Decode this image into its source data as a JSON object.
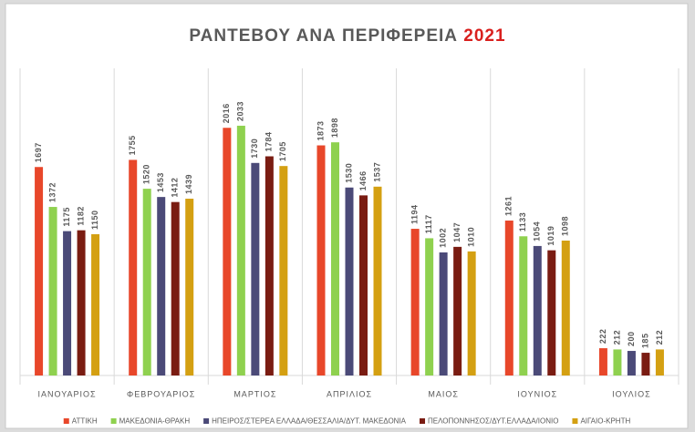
{
  "chart_data": {
    "type": "bar",
    "title": "ΡΑΝΤΕΒΟΥ ΑΝΑ ΠΕΡΙΦΕΡΕΙΑ",
    "title_highlight": "2021",
    "categories": [
      "ΙΑΝΟΥΑΡΙΟΣ",
      "ΦΕΒΡΟΥΑΡΙΟΣ",
      "ΜΑΡΤΙΟΣ",
      "ΑΠΡΙΛΙΟΣ",
      "ΜΑΙΟΣ",
      "ΙΟΥΝΙΟΣ",
      "ΙΟΥΛΙΟΣ"
    ],
    "series": [
      {
        "name": "ΑΤΤΙΚΗ",
        "color": "#e8472a",
        "values": [
          1697,
          1755,
          2016,
          1873,
          1194,
          1261,
          222
        ]
      },
      {
        "name": "ΜΑΚΕΔΟΝΙΑ-ΘΡΑΚΗ",
        "color": "#8fd14f",
        "values": [
          1372,
          1520,
          2033,
          1898,
          1117,
          1133,
          212
        ]
      },
      {
        "name": "ΗΠΕΙΡΟΣ/ΣΤΕΡΕΑ ΕΛΛΑΔΑ/ΘΕΣΣΑΛΙΑ/ΔΥΤ. ΜΑΚΕΔΟΝΙΑ",
        "color": "#4b4a78",
        "values": [
          1175,
          1453,
          1730,
          1530,
          1002,
          1054,
          200
        ]
      },
      {
        "name": "ΠΕΛΟΠΟΝΝΗΣΟΣ/ΔΥΤ.ΕΛΛΑΔΑ/ΙΟΝΙΟ",
        "color": "#7a1c12",
        "values": [
          1182,
          1412,
          1784,
          1466,
          1047,
          1019,
          185
        ]
      },
      {
        "name": "ΑΙΓΑΙΟ-ΚΡΗΤΗ",
        "color": "#d4a012",
        "values": [
          1150,
          1439,
          1705,
          1537,
          1010,
          1098,
          212
        ]
      }
    ],
    "ylim": [
      0,
      2500
    ],
    "legend": "bottom"
  }
}
